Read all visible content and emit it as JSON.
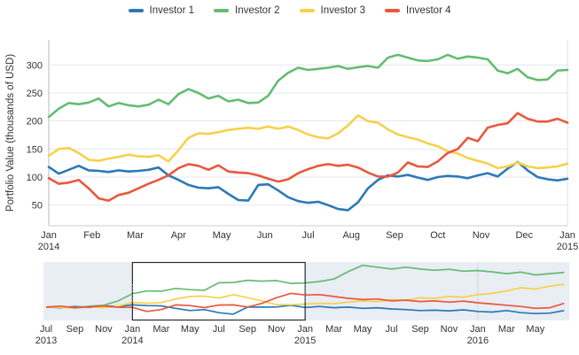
{
  "chart_data": {
    "type": "line",
    "title": "",
    "ylabel": "Portfolio Value (thousands of USD)",
    "x_unit": "weeks from Jan 2014 to Jan 2015",
    "y_ticks": [
      50,
      100,
      150,
      200,
      250,
      300
    ],
    "ylim": [
      13,
      345
    ],
    "grid": "horizontal",
    "legend_position": "top-center",
    "main_x_ticks": [
      [
        "Jan",
        "2014"
      ],
      [
        "Feb",
        ""
      ],
      [
        "Mar",
        ""
      ],
      [
        "Apr",
        ""
      ],
      [
        "May",
        ""
      ],
      [
        "Jun",
        ""
      ],
      [
        "Jul",
        ""
      ],
      [
        "Aug",
        ""
      ],
      [
        "Sep",
        ""
      ],
      [
        "Oct",
        ""
      ],
      [
        "Nov",
        ""
      ],
      [
        "Dec",
        ""
      ],
      [
        "Jan",
        "2015"
      ]
    ],
    "series": [
      {
        "name": "Investor 1",
        "color": "#2c79b5",
        "values": [
          118,
          106,
          113,
          120,
          112,
          111,
          109,
          112,
          110,
          111,
          113,
          117,
          103,
          95,
          86,
          81,
          80,
          82,
          70,
          59,
          58,
          86,
          87,
          76,
          64,
          57,
          54,
          56,
          50,
          43,
          41,
          55,
          80,
          95,
          103,
          101,
          104,
          99,
          95,
          100,
          102,
          101,
          98,
          103,
          107,
          101,
          115,
          127,
          112,
          100,
          96,
          94,
          97
        ]
      },
      {
        "name": "Investor 2",
        "color": "#65bc72",
        "values": [
          207,
          222,
          232,
          230,
          233,
          240,
          226,
          232,
          228,
          226,
          229,
          238,
          230,
          248,
          257,
          250,
          240,
          245,
          235,
          238,
          232,
          233,
          245,
          272,
          286,
          295,
          291,
          293,
          295,
          298,
          293,
          296,
          298,
          295,
          313,
          318,
          313,
          308,
          307,
          310,
          318,
          311,
          315,
          313,
          310,
          290,
          285,
          293,
          278,
          273,
          274,
          290,
          291
        ]
      },
      {
        "name": "Investor 3",
        "color": "#f6d14a",
        "values": [
          138,
          150,
          152,
          143,
          131,
          129,
          133,
          136,
          140,
          137,
          136,
          139,
          128,
          148,
          170,
          178,
          177,
          180,
          184,
          186,
          188,
          186,
          190,
          186,
          190,
          184,
          176,
          171,
          169,
          178,
          192,
          210,
          200,
          197,
          185,
          176,
          171,
          167,
          160,
          155,
          146,
          142,
          134,
          129,
          124,
          116,
          119,
          126,
          119,
          116,
          117,
          119,
          124
        ]
      },
      {
        "name": "Investor 4",
        "color": "#e8583e",
        "values": [
          98,
          88,
          90,
          95,
          80,
          62,
          58,
          68,
          72,
          80,
          88,
          95,
          103,
          116,
          123,
          120,
          113,
          121,
          110,
          108,
          107,
          103,
          97,
          92,
          96,
          107,
          114,
          120,
          123,
          120,
          122,
          117,
          108,
          101,
          101,
          108,
          126,
          119,
          118,
          128,
          143,
          150,
          170,
          164,
          188,
          193,
          196,
          214,
          204,
          199,
          199,
          204,
          197
        ]
      }
    ],
    "context": {
      "x_unit": "months from Jul 2013 to Jul 2016",
      "background": "#e9edf4",
      "brush": {
        "from": "Jan 2014",
        "to": "Jan 2015"
      },
      "x_ticks": [
        [
          "Jul",
          "2013"
        ],
        [
          "Sep",
          ""
        ],
        [
          "Nov",
          ""
        ],
        [
          "Jan",
          "2014"
        ],
        [
          "Mar",
          ""
        ],
        [
          "May",
          ""
        ],
        [
          "Jul",
          ""
        ],
        [
          "Sep",
          ""
        ],
        [
          "Nov",
          ""
        ],
        [
          "Jan",
          "2015"
        ],
        [
          "Mar",
          ""
        ],
        [
          "May",
          ""
        ],
        [
          "Jul",
          ""
        ],
        [
          "Sep",
          ""
        ],
        [
          "Nov",
          ""
        ],
        [
          "Jan",
          "2016"
        ],
        [
          "Mar",
          ""
        ],
        [
          "May",
          ""
        ]
      ],
      "series": [
        {
          "name": "Investor 1",
          "values": [
            100,
            95,
            105,
            98,
            110,
            105,
            118,
            112,
            110,
            90,
            72,
            80,
            55,
            43,
            100,
            100,
            101,
            115,
            97,
            105,
            95,
            100,
            90,
            95,
            85,
            80,
            72,
            75,
            70,
            78,
            65,
            60,
            72,
            55,
            48,
            52,
            72
          ]
        },
        {
          "name": "Investor 2",
          "values": [
            100,
            103,
            97,
            107,
            115,
            150,
            207,
            230,
            228,
            250,
            240,
            235,
            295,
            297,
            315,
            308,
            313,
            290,
            293,
            305,
            325,
            385,
            435,
            420,
            405,
            420,
            405,
            395,
            403,
            388,
            393,
            382,
            368,
            380,
            358,
            368,
            378
          ]
        },
        {
          "name": "Investor 3",
          "values": [
            100,
            98,
            92,
            103,
            96,
            108,
            138,
            131,
            136,
            165,
            185,
            188,
            172,
            200,
            176,
            150,
            120,
            119,
            124,
            130,
            128,
            140,
            150,
            145,
            160,
            155,
            175,
            170,
            185,
            180,
            200,
            210,
            230,
            255,
            245,
            268,
            283
          ]
        },
        {
          "name": "Investor 4",
          "values": [
            100,
            108,
            95,
            102,
            110,
            98,
            98,
            65,
            80,
            118,
            112,
            96,
            116,
            118,
            101,
            130,
            175,
            210,
            197,
            200,
            185,
            170,
            160,
            165,
            150,
            155,
            145,
            150,
            140,
            148,
            135,
            125,
            115,
            105,
            90,
            95,
            130
          ]
        }
      ]
    }
  },
  "colors": {
    "gridline": "#e3e7ed",
    "axis_left": "#b3b8c0",
    "axis_bottom": "#c9ced5",
    "axis_right": "#dde1e6",
    "tick_text": "#333333",
    "context_bg": "#e9edf4",
    "brush_border": "#2b2b2b",
    "brush_fill": "#ffffff",
    "handle": "#8a8f98",
    "year_line": "#d3d7de"
  }
}
